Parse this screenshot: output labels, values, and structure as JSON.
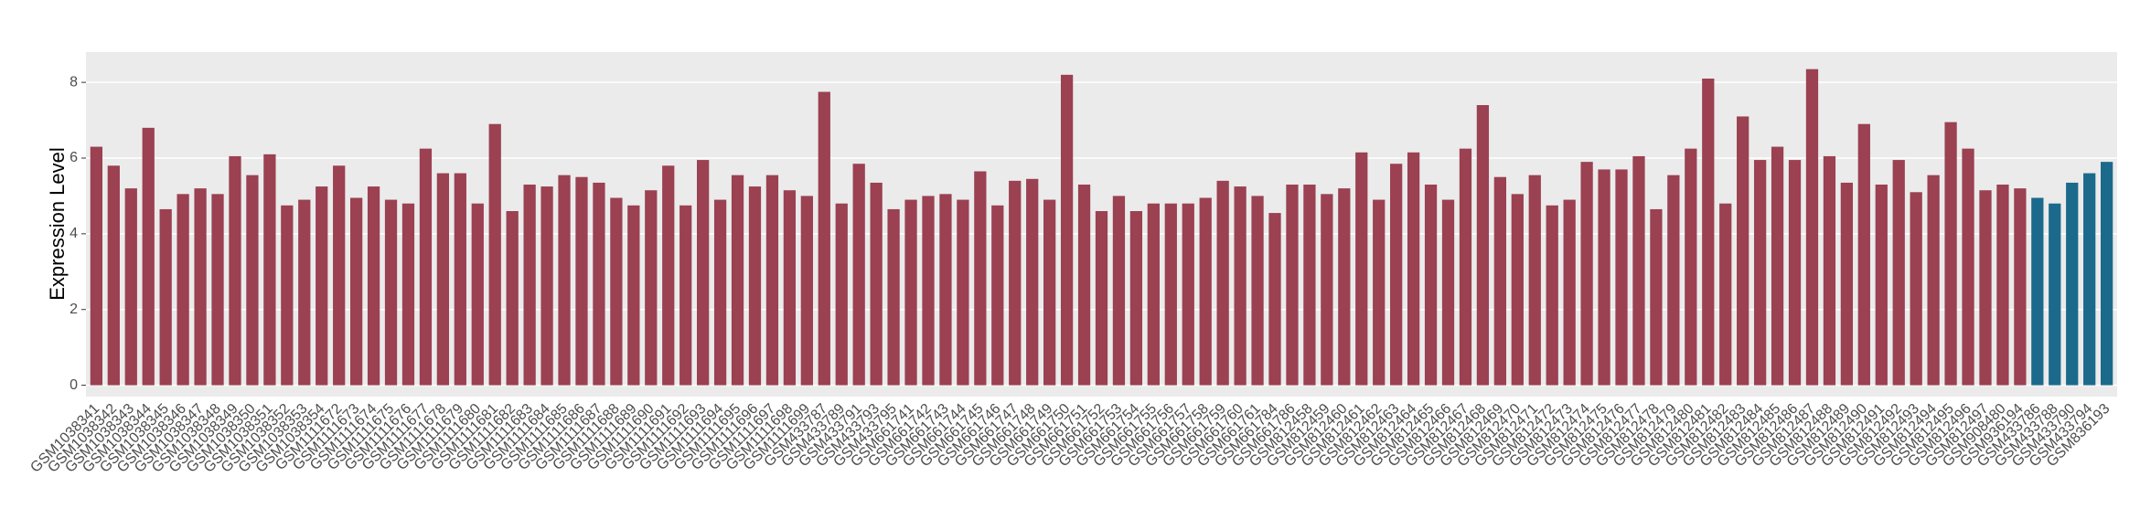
{
  "chart_data": {
    "type": "bar",
    "y_label": "Expression Level",
    "categories": [
      "GSM1038341",
      "GSM1038342",
      "GSM1038343",
      "GSM1038344",
      "GSM1038345",
      "GSM1038346",
      "GSM1038347",
      "GSM1038348",
      "GSM1038349",
      "GSM1038350",
      "GSM1038351",
      "GSM1038352",
      "GSM1038353",
      "GSM1038354",
      "GSM1111672",
      "GSM1111673",
      "GSM1111674",
      "GSM1111675",
      "GSM1111676",
      "GSM1111677",
      "GSM1111678",
      "GSM1111679",
      "GSM1111680",
      "GSM1111681",
      "GSM1111682",
      "GSM1111683",
      "GSM1111684",
      "GSM1111685",
      "GSM1111686",
      "GSM1111687",
      "GSM1111688",
      "GSM1111689",
      "GSM1111690",
      "GSM1111691",
      "GSM1111692",
      "GSM1111693",
      "GSM1111694",
      "GSM1111695",
      "GSM1111696",
      "GSM1111697",
      "GSM1111698",
      "GSM1111699",
      "GSM433787",
      "GSM433789",
      "GSM433791",
      "GSM433793",
      "GSM433795",
      "GSM661741",
      "GSM661742",
      "GSM661743",
      "GSM661744",
      "GSM661745",
      "GSM661746",
      "GSM661747",
      "GSM661748",
      "GSM661749",
      "GSM661750",
      "GSM661751",
      "GSM661752",
      "GSM661753",
      "GSM661754",
      "GSM661755",
      "GSM661756",
      "GSM661757",
      "GSM661758",
      "GSM661759",
      "GSM661760",
      "GSM661761",
      "GSM661784",
      "GSM661786",
      "GSM812458",
      "GSM812459",
      "GSM812460",
      "GSM812461",
      "GSM812462",
      "GSM812463",
      "GSM812464",
      "GSM812465",
      "GSM812466",
      "GSM812467",
      "GSM812468",
      "GSM812469",
      "GSM812470",
      "GSM812471",
      "GSM812472",
      "GSM812473",
      "GSM812474",
      "GSM812475",
      "GSM812476",
      "GSM812477",
      "GSM812478",
      "GSM812479",
      "GSM812480",
      "GSM812481",
      "GSM812482",
      "GSM812483",
      "GSM812484",
      "GSM812485",
      "GSM812486",
      "GSM812487",
      "GSM812488",
      "GSM812489",
      "GSM812490",
      "GSM812491",
      "GSM812492",
      "GSM812493",
      "GSM812494",
      "GSM812495",
      "GSM812496",
      "GSM812497",
      "GSM908480",
      "GSM936194",
      "GSM433786",
      "GSM433788",
      "GSM433790",
      "GSM433794",
      "GSM836193"
    ],
    "values": [
      6.3,
      5.8,
      5.2,
      6.8,
      4.65,
      5.05,
      5.2,
      5.05,
      6.05,
      5.55,
      6.1,
      4.75,
      4.9,
      5.25,
      5.8,
      4.95,
      5.25,
      4.9,
      4.8,
      6.25,
      5.6,
      5.6,
      4.8,
      6.9,
      4.6,
      5.3,
      5.25,
      5.55,
      5.5,
      5.35,
      4.95,
      4.75,
      5.15,
      5.8,
      4.75,
      5.95,
      4.9,
      5.55,
      5.25,
      5.55,
      5.15,
      5.0,
      7.75,
      4.8,
      5.85,
      5.35,
      4.65,
      4.9,
      5.0,
      5.05,
      4.9,
      5.65,
      4.75,
      5.4,
      5.45,
      4.9,
      8.2,
      5.3,
      4.6,
      5.0,
      4.6,
      4.8,
      4.8,
      4.8,
      4.95,
      5.4,
      5.25,
      5.0,
      4.55,
      5.3,
      5.3,
      5.05,
      5.2,
      6.15,
      4.9,
      5.85,
      6.15,
      5.3,
      4.9,
      6.25,
      7.4,
      5.5,
      5.05,
      5.55,
      4.75,
      4.9,
      5.9,
      5.7,
      5.7,
      6.05,
      4.65,
      5.55,
      6.25,
      8.1,
      4.8,
      7.1,
      5.95,
      6.3,
      5.95,
      8.35,
      6.05,
      5.35,
      6.9,
      5.3,
      5.95,
      5.1,
      5.55,
      6.95,
      6.25,
      5.15,
      5.3,
      5.2,
      4.95,
      4.8,
      5.35,
      5.6,
      5.9
    ],
    "colors": [
      "#9b4151",
      "#9b4151",
      "#9b4151",
      "#9b4151",
      "#9b4151",
      "#9b4151",
      "#9b4151",
      "#9b4151",
      "#9b4151",
      "#9b4151",
      "#9b4151",
      "#9b4151",
      "#9b4151",
      "#9b4151",
      "#9b4151",
      "#9b4151",
      "#9b4151",
      "#9b4151",
      "#9b4151",
      "#9b4151",
      "#9b4151",
      "#9b4151",
      "#9b4151",
      "#9b4151",
      "#9b4151",
      "#9b4151",
      "#9b4151",
      "#9b4151",
      "#9b4151",
      "#9b4151",
      "#9b4151",
      "#9b4151",
      "#9b4151",
      "#9b4151",
      "#9b4151",
      "#9b4151",
      "#9b4151",
      "#9b4151",
      "#9b4151",
      "#9b4151",
      "#9b4151",
      "#9b4151",
      "#9b4151",
      "#9b4151",
      "#9b4151",
      "#9b4151",
      "#9b4151",
      "#9b4151",
      "#9b4151",
      "#9b4151",
      "#9b4151",
      "#9b4151",
      "#9b4151",
      "#9b4151",
      "#9b4151",
      "#9b4151",
      "#9b4151",
      "#9b4151",
      "#9b4151",
      "#9b4151",
      "#9b4151",
      "#9b4151",
      "#9b4151",
      "#9b4151",
      "#9b4151",
      "#9b4151",
      "#9b4151",
      "#9b4151",
      "#9b4151",
      "#9b4151",
      "#9b4151",
      "#9b4151",
      "#9b4151",
      "#9b4151",
      "#9b4151",
      "#9b4151",
      "#9b4151",
      "#9b4151",
      "#9b4151",
      "#9b4151",
      "#9b4151",
      "#9b4151",
      "#9b4151",
      "#9b4151",
      "#9b4151",
      "#9b4151",
      "#9b4151",
      "#9b4151",
      "#9b4151",
      "#9b4151",
      "#9b4151",
      "#9b4151",
      "#9b4151",
      "#9b4151",
      "#9b4151",
      "#9b4151",
      "#9b4151",
      "#9b4151",
      "#9b4151",
      "#9b4151",
      "#9b4151",
      "#9b4151",
      "#9b4151",
      "#9b4151",
      "#9b4151",
      "#9b4151",
      "#9b4151",
      "#9b4151",
      "#9b4151",
      "#9b4151",
      "#9b4151",
      "#9b4151",
      "#1b6a8c",
      "#1b6a8c",
      "#1b6a8c",
      "#1b6a8c",
      "#1b6a8c"
    ],
    "ylim": [
      -0.3,
      8.8
    ],
    "yticks": [
      0,
      2,
      4,
      6,
      8
    ],
    "grid": true
  }
}
